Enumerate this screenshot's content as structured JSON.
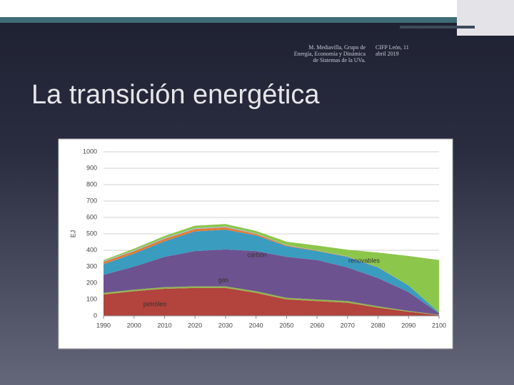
{
  "header": {
    "author": "M. Mediavilla, Grupo de Energía, Economía y Dinámica de Sistemas de la UVa.",
    "venue": "CIFP León, 11 abril 2019"
  },
  "title": "La transición energética",
  "chart_data": {
    "type": "stacked-area",
    "y_label": "EJ",
    "x": [
      1990,
      2000,
      2010,
      2020,
      2030,
      2040,
      2050,
      2060,
      2070,
      2080,
      2090,
      2100
    ],
    "xlim": [
      1990,
      2100
    ],
    "xticks": [
      1990,
      2000,
      2010,
      2020,
      2030,
      2040,
      2050,
      2060,
      2070,
      2080,
      2090,
      2100
    ],
    "ylim": [
      0,
      1000
    ],
    "yticks": [
      0,
      100,
      200,
      300,
      400,
      500,
      600,
      700,
      800,
      900,
      1000
    ],
    "grid": true,
    "series": [
      {
        "name": "petróleo",
        "color": "#b2433d",
        "values": [
          130,
          150,
          165,
          170,
          170,
          140,
          100,
          90,
          80,
          50,
          25,
          5
        ]
      },
      {
        "color": "#93b34e",
        "values": [
          10,
          10,
          10,
          10,
          10,
          10,
          10,
          10,
          10,
          8,
          5,
          2
        ]
      },
      {
        "name": "gas",
        "color": "#6d5290",
        "values": [
          110,
          140,
          185,
          215,
          225,
          245,
          250,
          240,
          205,
          172,
          115,
          8
        ]
      },
      {
        "name": "carbón",
        "color": "#3a9cbf",
        "values": [
          65,
          80,
          95,
          120,
          120,
          95,
          65,
          55,
          65,
          65,
          40,
          5
        ]
      },
      {
        "color": "#e07d3a",
        "values": [
          15,
          15,
          15,
          15,
          15,
          10,
          5,
          3,
          2,
          1,
          0,
          0
        ]
      },
      {
        "color": "#9dc3e6",
        "values": [
          5,
          5,
          5,
          5,
          5,
          3,
          2,
          1,
          1,
          0,
          0,
          0
        ]
      },
      {
        "name": "renovables",
        "color": "#8cc64b",
        "values": [
          5,
          10,
          12,
          15,
          15,
          15,
          20,
          30,
          40,
          90,
          180,
          320
        ]
      }
    ]
  }
}
